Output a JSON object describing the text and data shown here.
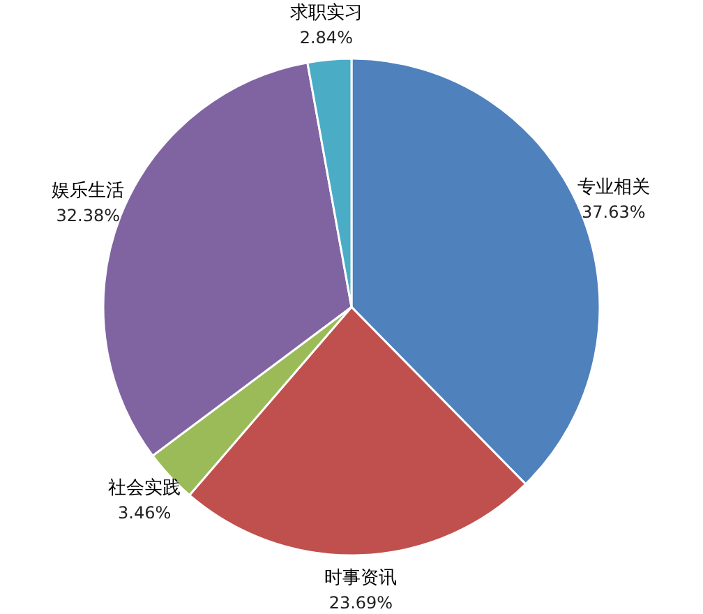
{
  "chart_data": {
    "type": "pie",
    "categories": [
      "专业相关",
      "时事资讯",
      "社会实践",
      "娱乐生活",
      "求职实习"
    ],
    "values": [
      37.63,
      23.69,
      3.46,
      32.38,
      2.84
    ],
    "colors": [
      "#4f81bd",
      "#c0504d",
      "#9bbb59",
      "#8064a2",
      "#4bacc6"
    ],
    "value_labels": [
      "37.63%",
      "23.69%",
      "3.46%",
      "32.38%",
      "2.84%"
    ]
  }
}
